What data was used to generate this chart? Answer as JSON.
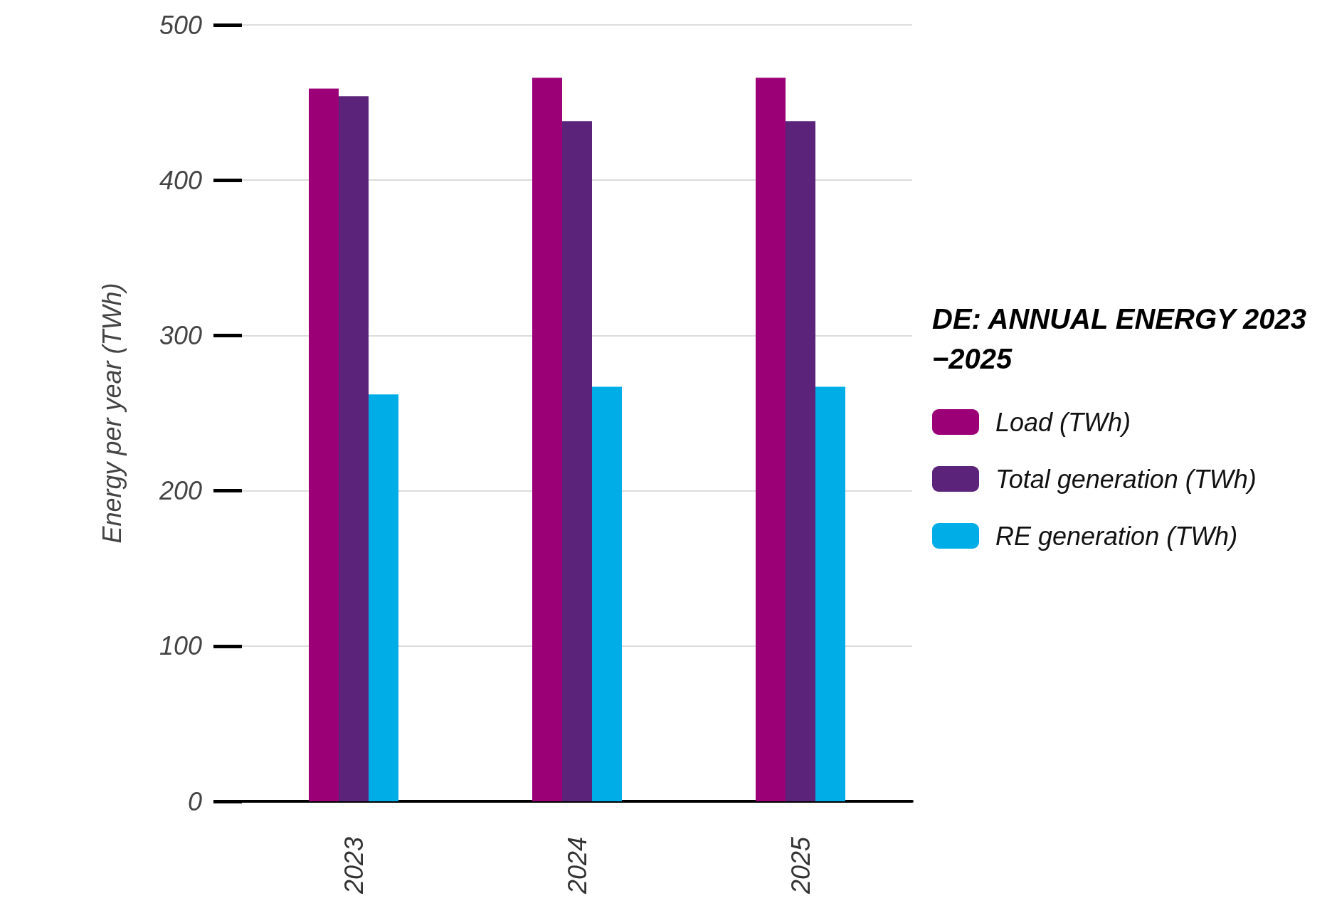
{
  "chart_data": {
    "type": "bar",
    "legend_title": "DE: ANNUAL ENERGY 2023−2025",
    "ylabel": "Energy per year (TWh)",
    "categories": [
      "2023",
      "2024",
      "2025"
    ],
    "series": [
      {
        "name": "Load (TWh)",
        "color": "#9b0077",
        "values": [
          459,
          466,
          466
        ]
      },
      {
        "name": "Total generation (TWh)",
        "color": "#5c237a",
        "values": [
          454,
          438,
          438
        ]
      },
      {
        "name": "RE generation (TWh)",
        "color": "#00ade6",
        "values": [
          262,
          267,
          267
        ]
      }
    ],
    "ylim": [
      0,
      500
    ],
    "yticks": [
      0,
      100,
      200,
      300,
      400,
      500
    ],
    "grid": "y",
    "legend": "right"
  }
}
